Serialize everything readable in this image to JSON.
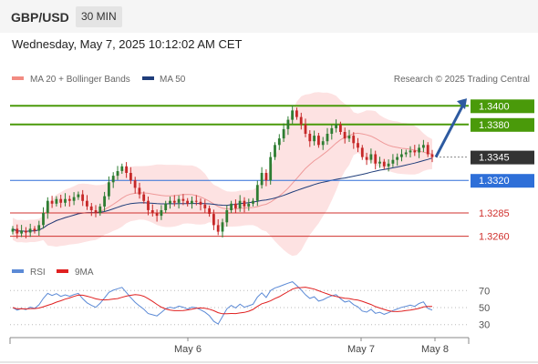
{
  "header": {
    "pair": "GBP/USD",
    "timeframe": "30 MIN",
    "datetime": "Wednesday, May 7, 2025 10:12:02 AM CET"
  },
  "legend": {
    "ma_bb": "MA 20 + Bollinger Bands",
    "ma50": "MA 50",
    "credit": "Research © 2025 Trading Central",
    "rsi": "RSI",
    "ma9": "9MA"
  },
  "colors": {
    "resistance": "#4a9a0a",
    "support_blue": "#2e6fd8",
    "support_red": "#d0312d",
    "current": "#333333",
    "bb_fill": "#fde2e2",
    "ma20": "#ef9a9a",
    "ma50": "#1f3d7a",
    "arrow": "#2d5aa0",
    "rsi": "#5b8ad6",
    "rsi_ma": "#e02020",
    "candle_up": "#2e7d32",
    "candle_down": "#c62828"
  },
  "chart_data": {
    "type": "candlestick",
    "x_ticks": [
      "May 6",
      "May 7",
      "May 8"
    ],
    "y_scale": {
      "min": 1.3245,
      "max": 1.3412
    },
    "levels": [
      {
        "label": "1.3400",
        "value": 1.34,
        "kind": "resistance"
      },
      {
        "label": "1.3380",
        "value": 1.338,
        "kind": "resistance"
      },
      {
        "label": "1.3345",
        "value": 1.3345,
        "kind": "current"
      },
      {
        "label": "1.3320",
        "value": 1.332,
        "kind": "support"
      },
      {
        "label": "1.3285",
        "value": 1.3285,
        "kind": "support"
      },
      {
        "label": "1.3260",
        "value": 1.326,
        "kind": "support"
      }
    ],
    "projection": {
      "from": 1.3345,
      "to": 1.34
    },
    "closes": [
      1.3268,
      1.3263,
      1.3266,
      1.3264,
      1.3268,
      1.3266,
      1.3272,
      1.3285,
      1.3298,
      1.3295,
      1.33,
      1.3296,
      1.33,
      1.3298,
      1.3302,
      1.3305,
      1.3298,
      1.3292,
      1.3288,
      1.3285,
      1.3292,
      1.3303,
      1.3318,
      1.3325,
      1.333,
      1.3335,
      1.3328,
      1.332,
      1.3312,
      1.3305,
      1.3298,
      1.3288,
      1.3285,
      1.3282,
      1.3288,
      1.3295,
      1.3298,
      1.3296,
      1.33,
      1.3298,
      1.3295,
      1.3298,
      1.3297,
      1.3294,
      1.329,
      1.3284,
      1.3272,
      1.3265,
      1.3275,
      1.3288,
      1.3295,
      1.329,
      1.3298,
      1.3292,
      1.3295,
      1.3298,
      1.3315,
      1.3328,
      1.332,
      1.3345,
      1.3358,
      1.3365,
      1.3375,
      1.3385,
      1.3395,
      1.3388,
      1.338,
      1.337,
      1.3362,
      1.3368,
      1.3358,
      1.3362,
      1.337,
      1.3376,
      1.338,
      1.3372,
      1.3365,
      1.3368,
      1.336,
      1.3355,
      1.3345,
      1.3342,
      1.3348,
      1.3338,
      1.334,
      1.3335,
      1.3338,
      1.3342,
      1.3345,
      1.3348,
      1.335,
      1.3352,
      1.335,
      1.3355,
      1.3358,
      1.3348,
      1.3345
    ],
    "rsi": {
      "y_ticks": [
        70,
        50,
        30
      ],
      "ylim": [
        20,
        80
      ]
    }
  }
}
